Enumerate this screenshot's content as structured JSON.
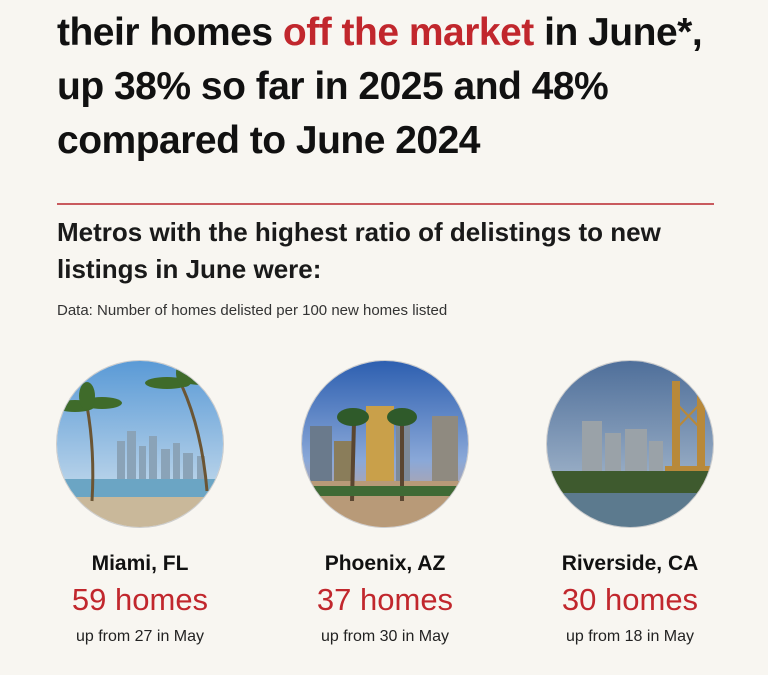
{
  "headline": {
    "part1": "their homes ",
    "highlight": "off the market",
    "part2": " in June*, up 38% so far in 2025 and 48% compared to June 2024"
  },
  "subheading": "Metros with the highest ratio of delistings to new listings in June were:",
  "note": "Data: Number of homes delisted per 100 new homes listed",
  "metros": [
    {
      "city": "Miami, FL",
      "homes": "59 homes",
      "change": "up from 27 in May"
    },
    {
      "city": "Phoenix, AZ",
      "homes": "37 homes",
      "change": "up from 30 in May"
    },
    {
      "city": "Riverside, CA",
      "homes": "30 homes",
      "change": "up from 18 in May"
    }
  ],
  "colors": {
    "accent": "#c1272d",
    "background": "#f8f6f1"
  }
}
